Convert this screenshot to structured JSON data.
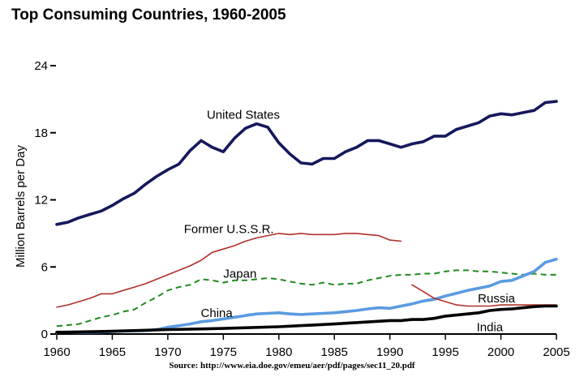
{
  "chart_data": {
    "type": "line",
    "title": "Top Consuming Countries, 1960-2005",
    "ylabel": "Million Barrels per Day",
    "xlabel": "",
    "source": "Source: http://www.eia.doe.gov/emeu/aer/pdf/pages/sec11_20.pdf",
    "xlim": [
      1960,
      2005
    ],
    "ylim": [
      0,
      24
    ],
    "xticks": [
      1960,
      1965,
      1970,
      1975,
      1980,
      1985,
      1990,
      1995,
      2000,
      2005
    ],
    "yticks": [
      0,
      6,
      12,
      18,
      24
    ],
    "grid": false,
    "series": [
      {
        "name": "United States",
        "color": "#15185c",
        "style": "solid",
        "weight": "heavy",
        "x": [
          1960,
          1961,
          1962,
          1963,
          1964,
          1965,
          1966,
          1967,
          1968,
          1969,
          1970,
          1971,
          1972,
          1973,
          1974,
          1975,
          1976,
          1977,
          1978,
          1979,
          1980,
          1981,
          1982,
          1983,
          1984,
          1985,
          1986,
          1987,
          1988,
          1989,
          1990,
          1991,
          1992,
          1993,
          1994,
          1995,
          1996,
          1997,
          1998,
          1999,
          2000,
          2001,
          2002,
          2003,
          2004,
          2005
        ],
        "y": [
          9.8,
          10.0,
          10.4,
          10.7,
          11.0,
          11.5,
          12.1,
          12.6,
          13.4,
          14.1,
          14.7,
          15.2,
          16.4,
          17.3,
          16.7,
          16.3,
          17.5,
          18.4,
          18.8,
          18.5,
          17.1,
          16.1,
          15.3,
          15.2,
          15.7,
          15.7,
          16.3,
          16.7,
          17.3,
          17.3,
          17.0,
          16.7,
          17.0,
          17.2,
          17.7,
          17.7,
          18.3,
          18.6,
          18.9,
          19.5,
          19.7,
          19.6,
          19.8,
          20.0,
          20.7,
          20.8
        ]
      },
      {
        "name": "Former U.S.S.R.",
        "color": "#b0302a",
        "style": "solid",
        "weight": "thin",
        "x": [
          1960,
          1961,
          1962,
          1963,
          1964,
          1965,
          1966,
          1967,
          1968,
          1969,
          1970,
          1971,
          1972,
          1973,
          1974,
          1975,
          1976,
          1977,
          1978,
          1979,
          1980,
          1981,
          1982,
          1983,
          1984,
          1985,
          1986,
          1987,
          1988,
          1989,
          1990,
          1991
        ],
        "y": [
          2.4,
          2.6,
          2.9,
          3.2,
          3.6,
          3.6,
          3.9,
          4.2,
          4.5,
          4.9,
          5.3,
          5.7,
          6.1,
          6.6,
          7.3,
          7.6,
          7.9,
          8.3,
          8.6,
          8.8,
          9.0,
          8.9,
          9.0,
          8.9,
          8.9,
          8.9,
          9.0,
          9.0,
          8.9,
          8.8,
          8.4,
          8.3
        ]
      },
      {
        "name": "Japan",
        "color": "#1e8a1e",
        "style": "dashed",
        "weight": "medium",
        "x": [
          1960,
          1961,
          1962,
          1963,
          1964,
          1965,
          1966,
          1967,
          1968,
          1969,
          1970,
          1971,
          1972,
          1973,
          1974,
          1975,
          1976,
          1977,
          1978,
          1979,
          1980,
          1981,
          1982,
          1983,
          1984,
          1985,
          1986,
          1987,
          1988,
          1989,
          1990,
          1991,
          1992,
          1993,
          1994,
          1995,
          1996,
          1997,
          1998,
          1999,
          2000,
          2001,
          2002,
          2003,
          2004,
          2005
        ],
        "y": [
          0.7,
          0.8,
          0.9,
          1.2,
          1.5,
          1.7,
          2.0,
          2.2,
          2.8,
          3.3,
          3.9,
          4.2,
          4.4,
          4.9,
          4.8,
          4.6,
          4.8,
          4.8,
          4.9,
          5.0,
          4.9,
          4.7,
          4.5,
          4.4,
          4.6,
          4.4,
          4.5,
          4.5,
          4.8,
          5.0,
          5.2,
          5.3,
          5.3,
          5.4,
          5.4,
          5.6,
          5.7,
          5.7,
          5.6,
          5.6,
          5.5,
          5.4,
          5.3,
          5.4,
          5.3,
          5.3
        ]
      },
      {
        "name": "China",
        "color": "#5b9be0",
        "style": "solid",
        "weight": "heavy",
        "x": [
          1960,
          1961,
          1962,
          1963,
          1964,
          1965,
          1966,
          1967,
          1968,
          1969,
          1970,
          1971,
          1972,
          1973,
          1974,
          1975,
          1976,
          1977,
          1978,
          1979,
          1980,
          1981,
          1982,
          1983,
          1984,
          1985,
          1986,
          1987,
          1988,
          1989,
          1990,
          1991,
          1992,
          1993,
          1994,
          1995,
          1996,
          1997,
          1998,
          1999,
          2000,
          2001,
          2002,
          2003,
          2004,
          2005
        ],
        "y": [
          0.17,
          0.17,
          0.16,
          0.17,
          0.19,
          0.22,
          0.27,
          0.28,
          0.3,
          0.4,
          0.6,
          0.75,
          0.9,
          1.1,
          1.2,
          1.35,
          1.5,
          1.65,
          1.8,
          1.85,
          1.9,
          1.8,
          1.75,
          1.8,
          1.85,
          1.9,
          2.0,
          2.1,
          2.25,
          2.35,
          2.3,
          2.5,
          2.7,
          2.95,
          3.1,
          3.4,
          3.65,
          3.9,
          4.1,
          4.3,
          4.7,
          4.8,
          5.2,
          5.6,
          6.4,
          6.7
        ]
      },
      {
        "name": "Russia",
        "color": "#b0302a",
        "style": "solid",
        "weight": "thin",
        "x": [
          1992,
          1993,
          1994,
          1995,
          1996,
          1997,
          1998,
          1999,
          2000,
          2001,
          2002,
          2003,
          2004,
          2005
        ],
        "y": [
          4.4,
          3.8,
          3.2,
          2.9,
          2.6,
          2.5,
          2.5,
          2.5,
          2.6,
          2.6,
          2.6,
          2.6,
          2.6,
          2.6
        ]
      },
      {
        "name": "India",
        "color": "#000000",
        "style": "solid",
        "weight": "heavy",
        "x": [
          1960,
          1965,
          1970,
          1975,
          1980,
          1985,
          1990,
          1991,
          1992,
          1993,
          1994,
          1995,
          1996,
          1997,
          1998,
          1999,
          2000,
          2001,
          2002,
          2003,
          2004,
          2005
        ],
        "y": [
          0.15,
          0.25,
          0.4,
          0.5,
          0.65,
          0.9,
          1.2,
          1.2,
          1.3,
          1.3,
          1.4,
          1.6,
          1.7,
          1.8,
          1.9,
          2.1,
          2.2,
          2.25,
          2.35,
          2.45,
          2.5,
          2.5
        ]
      }
    ],
    "series_labels": [
      {
        "text": "United States",
        "at": [
          1976.8,
          19.6
        ]
      },
      {
        "text": "Former U.S.S.R.",
        "at": [
          1975.5,
          9.4
        ]
      },
      {
        "text": "Japan",
        "at": [
          1976.5,
          5.4
        ]
      },
      {
        "text": "China",
        "at": [
          1974.4,
          1.9
        ]
      },
      {
        "text": "Russia",
        "at": [
          1999.6,
          3.2
        ]
      },
      {
        "text": "India",
        "at": [
          1999.0,
          0.6
        ]
      }
    ]
  }
}
